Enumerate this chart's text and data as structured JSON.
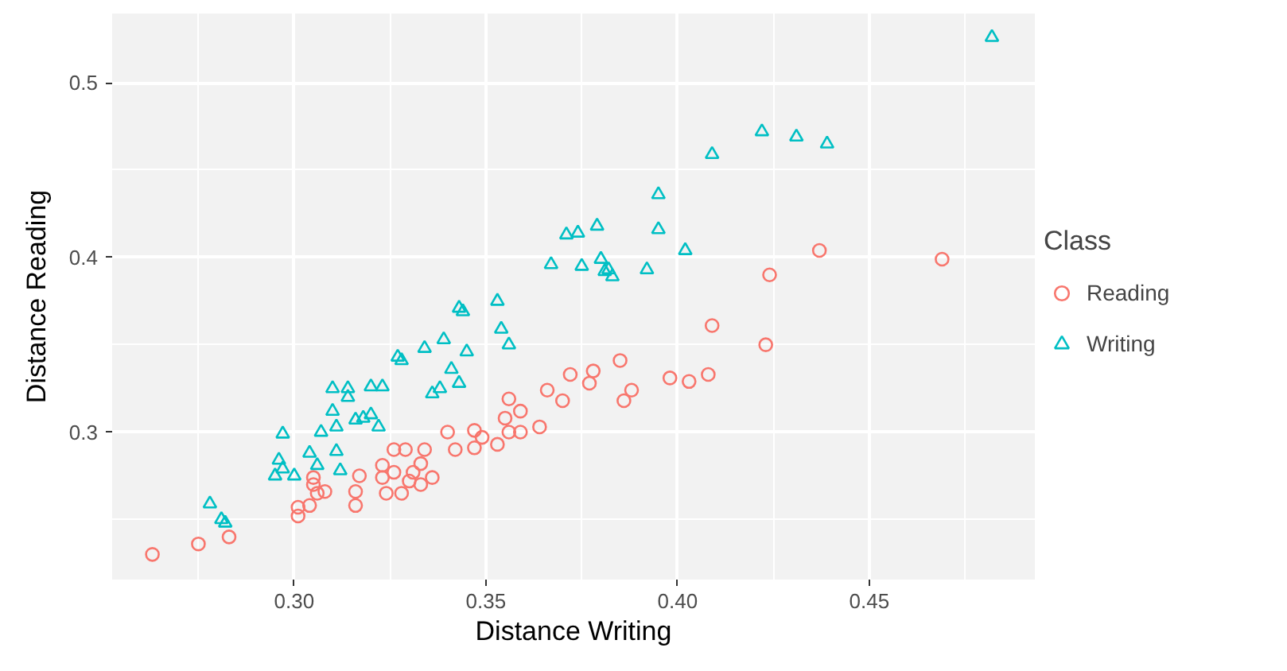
{
  "chart_data": {
    "type": "scatter",
    "xlabel": "Distance Writing",
    "ylabel": "Distance Reading",
    "legend_title": "Class",
    "legend": "right",
    "grid": true,
    "xlim": [
      0.2525,
      0.4932
    ],
    "ylim": [
      0.2156,
      0.5396
    ],
    "xticks": [
      {
        "value": 0.3,
        "label": "0.30"
      },
      {
        "value": 0.35,
        "label": "0.35"
      },
      {
        "value": 0.4,
        "label": "0.40"
      },
      {
        "value": 0.45,
        "label": "0.45"
      }
    ],
    "yticks": [
      0.3,
      0.4,
      0.5
    ],
    "series": [
      {
        "name": "Reading",
        "color": "#f8766d",
        "marker": "circle",
        "x": [
          0.263,
          0.275,
          0.283,
          0.301,
          0.301,
          0.304,
          0.305,
          0.305,
          0.306,
          0.308,
          0.317,
          0.316,
          0.316,
          0.323,
          0.323,
          0.324,
          0.326,
          0.326,
          0.328,
          0.329,
          0.33,
          0.331,
          0.333,
          0.334,
          0.333,
          0.336,
          0.34,
          0.342,
          0.347,
          0.347,
          0.349,
          0.353,
          0.356,
          0.355,
          0.356,
          0.359,
          0.359,
          0.364,
          0.366,
          0.37,
          0.372,
          0.377,
          0.378,
          0.385,
          0.386,
          0.388,
          0.398,
          0.403,
          0.408,
          0.409,
          0.423,
          0.424,
          0.437,
          0.469
        ],
        "values": [
          0.23,
          0.236,
          0.24,
          0.252,
          0.257,
          0.258,
          0.274,
          0.27,
          0.265,
          0.266,
          0.275,
          0.266,
          0.258,
          0.281,
          0.274,
          0.265,
          0.29,
          0.277,
          0.265,
          0.29,
          0.272,
          0.277,
          0.282,
          0.29,
          0.27,
          0.274,
          0.3,
          0.29,
          0.301,
          0.291,
          0.297,
          0.293,
          0.319,
          0.308,
          0.3,
          0.312,
          0.3,
          0.303,
          0.324,
          0.318,
          0.333,
          0.328,
          0.335,
          0.341,
          0.318,
          0.324,
          0.331,
          0.329,
          0.333,
          0.361,
          0.35,
          0.39,
          0.404,
          0.399
        ]
      },
      {
        "name": "Writing",
        "color": "#00bfc4",
        "marker": "triangle",
        "x": [
          0.278,
          0.281,
          0.282,
          0.295,
          0.296,
          0.297,
          0.297,
          0.3,
          0.304,
          0.306,
          0.307,
          0.31,
          0.31,
          0.311,
          0.311,
          0.312,
          0.314,
          0.314,
          0.316,
          0.318,
          0.32,
          0.32,
          0.322,
          0.323,
          0.327,
          0.328,
          0.334,
          0.336,
          0.338,
          0.339,
          0.341,
          0.343,
          0.343,
          0.344,
          0.345,
          0.353,
          0.354,
          0.356,
          0.367,
          0.371,
          0.374,
          0.379,
          0.375,
          0.38,
          0.381,
          0.382,
          0.383,
          0.392,
          0.395,
          0.395,
          0.402,
          0.409,
          0.422,
          0.431,
          0.439,
          0.482
        ],
        "values": [
          0.259,
          0.25,
          0.248,
          0.275,
          0.284,
          0.299,
          0.279,
          0.275,
          0.288,
          0.281,
          0.3,
          0.325,
          0.312,
          0.303,
          0.289,
          0.278,
          0.32,
          0.325,
          0.307,
          0.308,
          0.31,
          0.326,
          0.303,
          0.326,
          0.343,
          0.341,
          0.348,
          0.322,
          0.325,
          0.353,
          0.336,
          0.328,
          0.371,
          0.369,
          0.346,
          0.375,
          0.359,
          0.35,
          0.396,
          0.413,
          0.414,
          0.418,
          0.395,
          0.399,
          0.392,
          0.393,
          0.389,
          0.393,
          0.436,
          0.416,
          0.404,
          0.459,
          0.472,
          0.469,
          0.465,
          0.526
        ]
      }
    ]
  }
}
